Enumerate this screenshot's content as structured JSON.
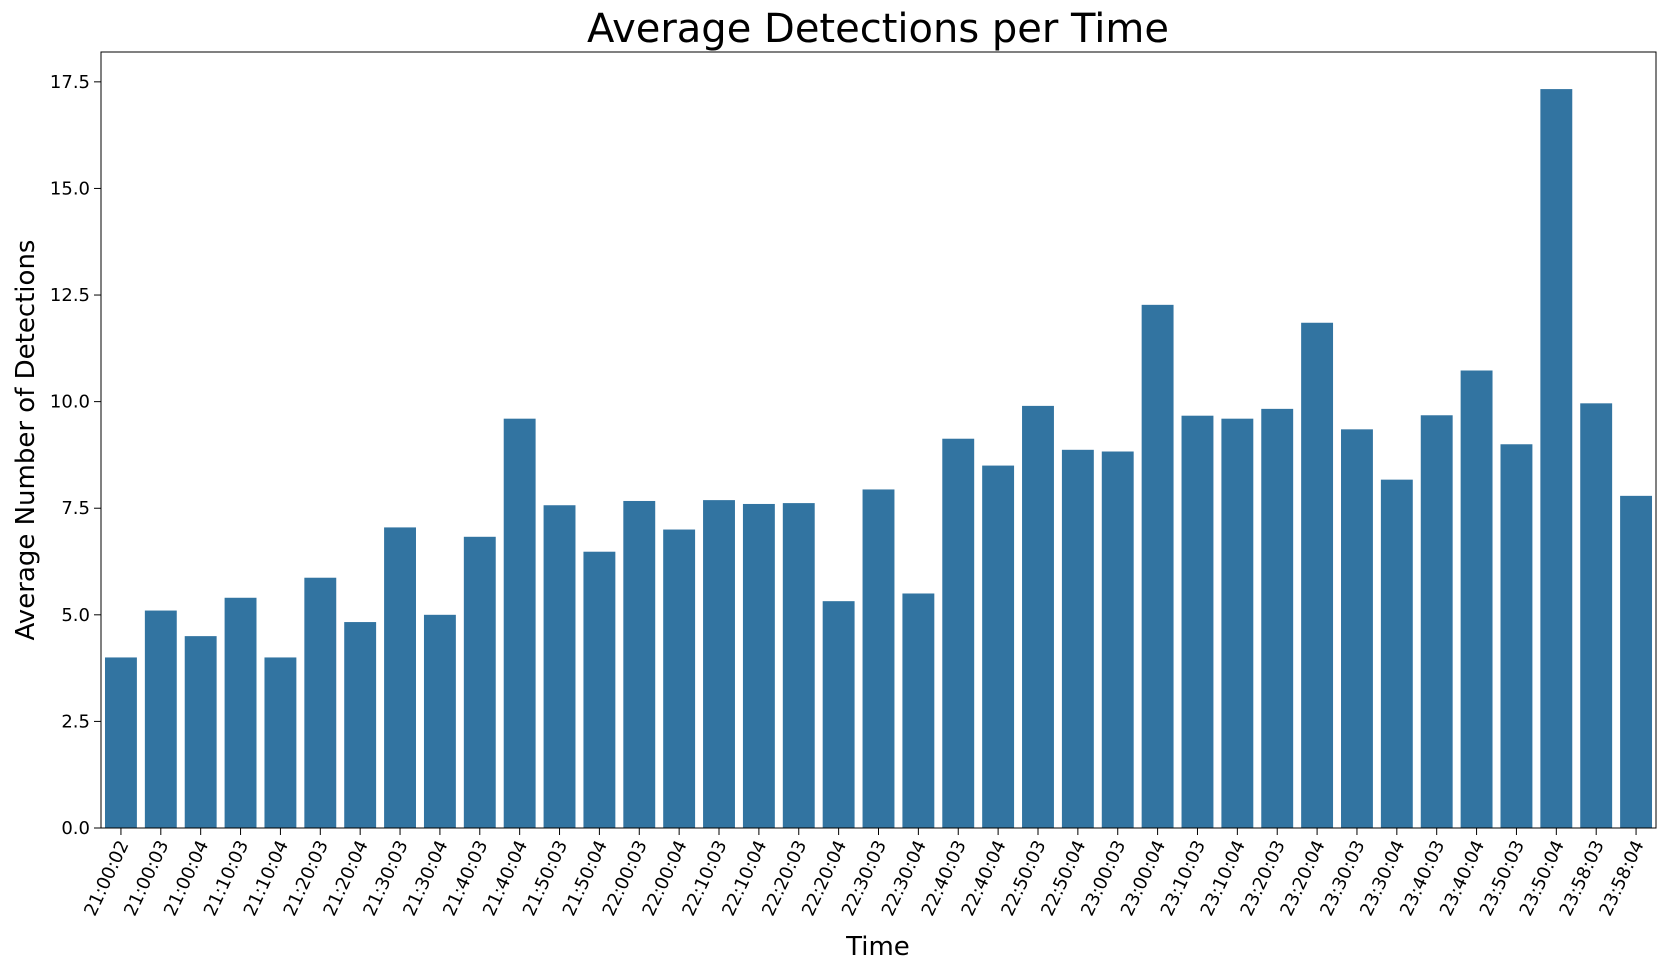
{
  "colors": {
    "bar": "#3274a1",
    "axis": "#000000",
    "background": "#ffffff"
  },
  "chart_data": {
    "type": "bar",
    "title": "Average Detections per Time",
    "xlabel": "Time",
    "ylabel": "Average Number of Detections",
    "ylim": [
      0,
      18.2
    ],
    "yticks": [
      "0.0",
      "2.5",
      "5.0",
      "7.5",
      "10.0",
      "12.5",
      "15.0",
      "17.5"
    ],
    "ytick_values": [
      0,
      2.5,
      5,
      7.5,
      10,
      12.5,
      15,
      17.5
    ],
    "grid": false,
    "categories": [
      "21:00:02",
      "21:00:03",
      "21:00:04",
      "21:10:03",
      "21:10:04",
      "21:20:03",
      "21:20:04",
      "21:30:03",
      "21:30:04",
      "21:40:03",
      "21:40:04",
      "21:50:03",
      "21:50:04",
      "22:00:03",
      "22:00:04",
      "22:10:03",
      "22:10:04",
      "22:20:03",
      "22:20:04",
      "22:30:03",
      "22:30:04",
      "22:40:03",
      "22:40:04",
      "22:50:03",
      "22:50:04",
      "23:00:03",
      "23:00:04",
      "23:10:03",
      "23:10:04",
      "23:20:03",
      "23:20:04",
      "23:30:03",
      "23:30:04",
      "23:40:03",
      "23:40:04",
      "23:50:03",
      "23:50:04",
      "23:58:03",
      "23:58:04"
    ],
    "values": [
      4.0,
      5.1,
      4.5,
      5.4,
      4.0,
      5.87,
      4.83,
      7.05,
      5.0,
      6.83,
      9.6,
      7.57,
      6.48,
      7.67,
      7.0,
      7.69,
      7.6,
      7.62,
      5.32,
      7.94,
      5.5,
      9.13,
      8.5,
      9.9,
      8.87,
      8.83,
      12.27,
      9.67,
      9.6,
      9.83,
      11.85,
      9.35,
      8.17,
      9.68,
      10.73,
      9.0,
      17.33,
      9.96,
      7.79
    ]
  }
}
